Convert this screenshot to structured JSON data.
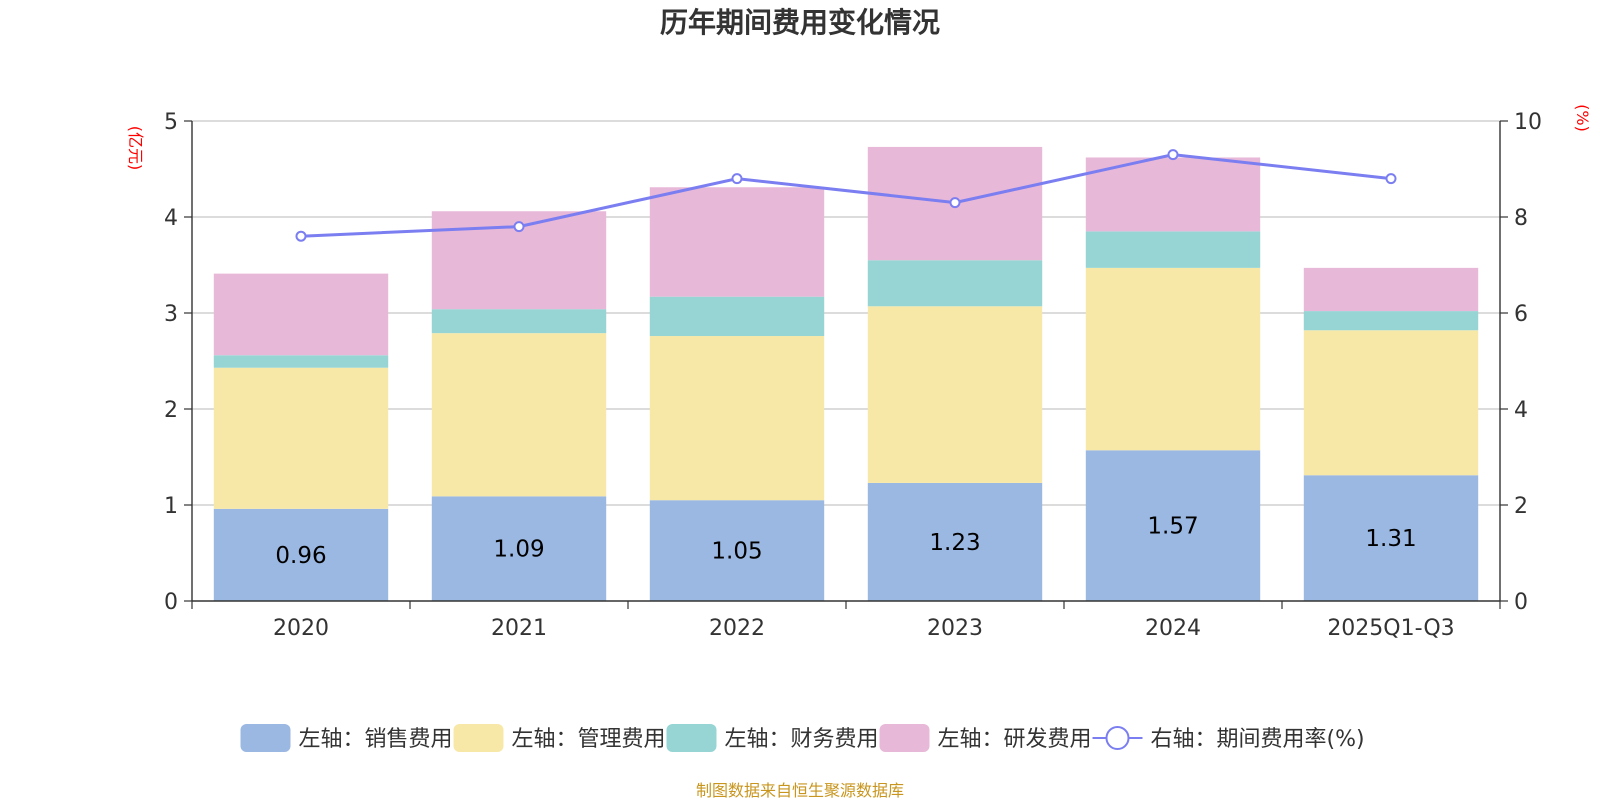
{
  "chart_data": {
    "type": "bar",
    "stacked": true,
    "title": "历年期间费用变化情况",
    "left_unit": "(亿元)",
    "right_unit": "(%)",
    "categories": [
      "2020",
      "2021",
      "2022",
      "2023",
      "2024",
      "2025Q1-Q3"
    ],
    "left_axis": {
      "min": 0,
      "max": 5,
      "ticks": [
        "0",
        "1",
        "2",
        "3",
        "4",
        "5"
      ]
    },
    "right_axis": {
      "min": 0,
      "max": 10,
      "ticks": [
        "0",
        "2",
        "4",
        "6",
        "8",
        "10"
      ]
    },
    "series": [
      {
        "name": "左轴：销售费用",
        "color": "#9bb8e2",
        "values": [
          0.96,
          1.09,
          1.05,
          1.23,
          1.57,
          1.31
        ],
        "labels": [
          "0.96",
          "1.09",
          "1.05",
          "1.23",
          "1.57",
          "1.31"
        ]
      },
      {
        "name": "左轴：管理费用",
        "color": "#f8e8a8",
        "values": [
          1.47,
          1.7,
          1.71,
          1.84,
          1.9,
          1.51
        ]
      },
      {
        "name": "左轴：财务费用",
        "color": "#97d5d5",
        "values": [
          0.13,
          0.25,
          0.41,
          0.48,
          0.38,
          0.2
        ]
      },
      {
        "name": "左轴：研发费用",
        "color": "#e8b8d8",
        "values": [
          0.85,
          1.02,
          1.14,
          1.18,
          0.77,
          0.45
        ]
      }
    ],
    "line": {
      "name": "右轴：期间费用率(%)",
      "color": "#7b7ef0",
      "values": [
        7.6,
        7.8,
        8.8,
        8.3,
        9.3,
        8.8
      ]
    },
    "grid": true,
    "legend_position": "bottom"
  },
  "source_note": "制图数据来自恒生聚源数据库"
}
